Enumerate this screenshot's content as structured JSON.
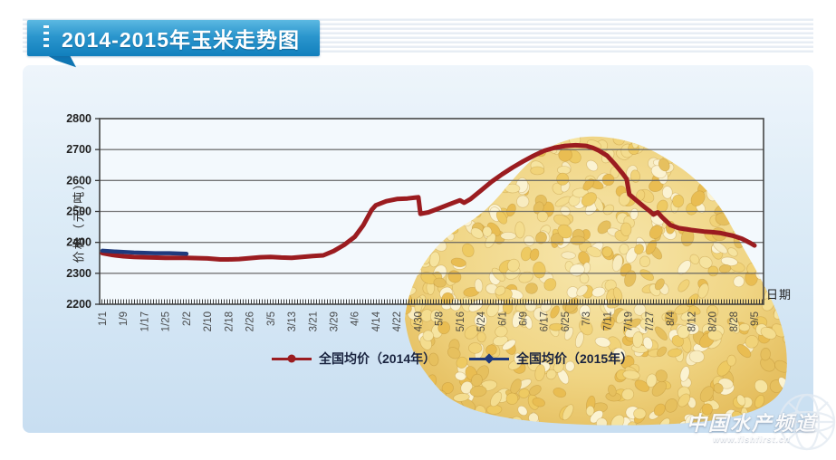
{
  "banner": {
    "title": "2014-2015年玉米走势图"
  },
  "watermark": {
    "brand": "中国水产频道",
    "url": "www.fishfirst.cn"
  },
  "colors": {
    "banner_blue": "#1180bd",
    "panel_blue": "#d7e8f6",
    "series_2014": "#9b1c20",
    "series_2015": "#1f3a7d",
    "grid": "#5f5f5f",
    "frame": "#3c3c3c"
  },
  "chart_data": {
    "type": "line",
    "title": "2014-2015年玉米走势图",
    "xlabel": "日期",
    "ylabel": "价格（元/吨）",
    "ylim": [
      2200,
      2800
    ],
    "yticks": [
      2200,
      2300,
      2400,
      2500,
      2600,
      2700,
      2800
    ],
    "grid": "horizontal",
    "legend_position": "bottom",
    "categories": [
      "1/1",
      "1/9",
      "1/17",
      "1/25",
      "2/2",
      "2/10",
      "2/18",
      "2/26",
      "3/5",
      "3/13",
      "3/21",
      "3/29",
      "4/6",
      "4/14",
      "4/22",
      "4/30",
      "5/8",
      "5/16",
      "5/24",
      "6/1",
      "6/9",
      "6/17",
      "6/25",
      "7/3",
      "7/11",
      "7/19",
      "7/27",
      "8/4",
      "8/12",
      "8/20",
      "8/28",
      "9/5"
    ],
    "series": [
      {
        "name": "全国均价（2014年）",
        "color": "#9b1c20",
        "marker": "circle",
        "points": [
          [
            0,
            2365
          ],
          [
            0.5,
            2359
          ],
          [
            1,
            2355
          ],
          [
            1.5,
            2353
          ],
          [
            2,
            2352
          ],
          [
            3,
            2350
          ],
          [
            4,
            2350
          ],
          [
            5,
            2348
          ],
          [
            5.6,
            2345
          ],
          [
            6,
            2345
          ],
          [
            6.5,
            2346
          ],
          [
            7,
            2349
          ],
          [
            7.5,
            2352
          ],
          [
            8,
            2353
          ],
          [
            8.5,
            2351
          ],
          [
            9,
            2350
          ],
          [
            9.5,
            2353
          ],
          [
            10,
            2356
          ],
          [
            10.5,
            2358
          ],
          [
            11,
            2372
          ],
          [
            11.5,
            2392
          ],
          [
            12,
            2418
          ],
          [
            12.4,
            2455
          ],
          [
            12.8,
            2505
          ],
          [
            13,
            2520
          ],
          [
            13.5,
            2533
          ],
          [
            14,
            2540
          ],
          [
            14.5,
            2542
          ],
          [
            14.9,
            2545
          ],
          [
            15.02,
            2546
          ],
          [
            15.12,
            2492
          ],
          [
            15.5,
            2497
          ],
          [
            16,
            2510
          ],
          [
            16.5,
            2523
          ],
          [
            17,
            2536
          ],
          [
            17.2,
            2528
          ],
          [
            17.5,
            2540
          ],
          [
            18,
            2568
          ],
          [
            18.5,
            2596
          ],
          [
            19,
            2620
          ],
          [
            19.5,
            2642
          ],
          [
            20,
            2662
          ],
          [
            20.5,
            2680
          ],
          [
            21,
            2696
          ],
          [
            21.5,
            2706
          ],
          [
            22,
            2712
          ],
          [
            22.5,
            2714
          ],
          [
            23,
            2712
          ],
          [
            23.3,
            2706
          ],
          [
            23.6,
            2697
          ],
          [
            24,
            2680
          ],
          [
            24.4,
            2650
          ],
          [
            24.7,
            2625
          ],
          [
            24.92,
            2605
          ],
          [
            25.05,
            2555
          ],
          [
            25.4,
            2535
          ],
          [
            25.7,
            2518
          ],
          [
            26,
            2502
          ],
          [
            26.2,
            2490
          ],
          [
            26.4,
            2497
          ],
          [
            26.6,
            2482
          ],
          [
            27,
            2456
          ],
          [
            27.4,
            2446
          ],
          [
            28,
            2440
          ],
          [
            28.6,
            2435
          ],
          [
            29,
            2433
          ],
          [
            29.4,
            2430
          ],
          [
            30,
            2421
          ],
          [
            30.4,
            2412
          ],
          [
            30.8,
            2398
          ],
          [
            31,
            2390
          ]
        ]
      },
      {
        "name": "全国均价（2015年）",
        "color": "#1f3a7d",
        "marker": "diamond",
        "points": [
          [
            0,
            2373
          ],
          [
            0.7,
            2370
          ],
          [
            1.5,
            2367
          ],
          [
            2.5,
            2365
          ],
          [
            3.2,
            2365
          ],
          [
            4.0,
            2363
          ]
        ]
      }
    ]
  }
}
